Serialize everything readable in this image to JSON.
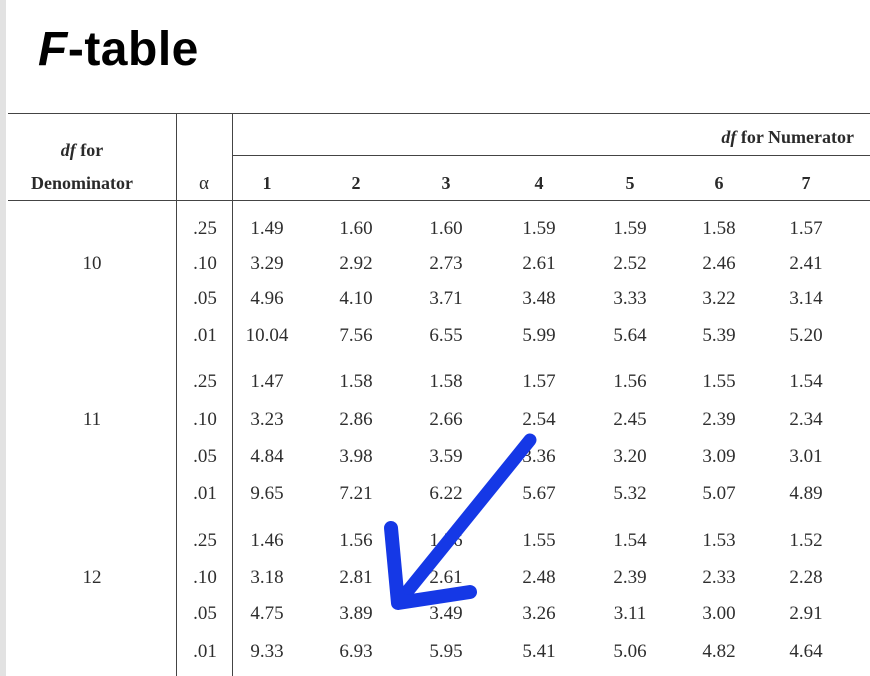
{
  "title": {
    "prefix": "F",
    "suffix": "-table"
  },
  "headers": {
    "df_italic": "df",
    "denominator_line1_rest": " for",
    "denominator_line2": "Denominator",
    "alpha": "α",
    "numerator_rest": " for Numerator"
  },
  "numerator_columns": [
    "1",
    "2",
    "3",
    "4",
    "5",
    "6",
    "7"
  ],
  "groups": [
    {
      "df": "10",
      "rows": [
        {
          "alpha": ".25",
          "values": [
            "1.49",
            "1.60",
            "1.60",
            "1.59",
            "1.59",
            "1.58",
            "1.57"
          ]
        },
        {
          "alpha": ".10",
          "values": [
            "3.29",
            "2.92",
            "2.73",
            "2.61",
            "2.52",
            "2.46",
            "2.41"
          ]
        },
        {
          "alpha": ".05",
          "values": [
            "4.96",
            "4.10",
            "3.71",
            "3.48",
            "3.33",
            "3.22",
            "3.14"
          ]
        },
        {
          "alpha": ".01",
          "values": [
            "10.04",
            "7.56",
            "6.55",
            "5.99",
            "5.64",
            "5.39",
            "5.20"
          ]
        }
      ]
    },
    {
      "df": "11",
      "rows": [
        {
          "alpha": ".25",
          "values": [
            "1.47",
            "1.58",
            "1.58",
            "1.57",
            "1.56",
            "1.55",
            "1.54"
          ]
        },
        {
          "alpha": ".10",
          "values": [
            "3.23",
            "2.86",
            "2.66",
            "2.54",
            "2.45",
            "2.39",
            "2.34"
          ]
        },
        {
          "alpha": ".05",
          "values": [
            "4.84",
            "3.98",
            "3.59",
            "3.36",
            "3.20",
            "3.09",
            "3.01"
          ]
        },
        {
          "alpha": ".01",
          "values": [
            "9.65",
            "7.21",
            "6.22",
            "5.67",
            "5.32",
            "5.07",
            "4.89"
          ]
        }
      ]
    },
    {
      "df": "12",
      "rows": [
        {
          "alpha": ".25",
          "values": [
            "1.46",
            "1.56",
            "1.56",
            "1.55",
            "1.54",
            "1.53",
            "1.52"
          ]
        },
        {
          "alpha": ".10",
          "values": [
            "3.18",
            "2.81",
            "2.61",
            "2.48",
            "2.39",
            "2.33",
            "2.28"
          ]
        },
        {
          "alpha": ".05",
          "values": [
            "4.75",
            "3.89",
            "3.49",
            "3.26",
            "3.11",
            "3.00",
            "2.91"
          ]
        },
        {
          "alpha": ".01",
          "values": [
            "9.33",
            "6.93",
            "5.95",
            "5.41",
            "5.06",
            "4.82",
            "4.64"
          ]
        }
      ]
    }
  ],
  "annotation": {
    "arrow_color": "#1538e6"
  }
}
